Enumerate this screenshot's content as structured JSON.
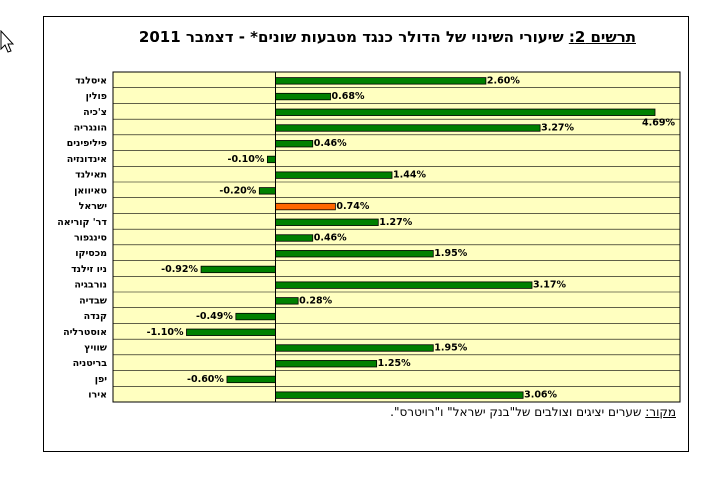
{
  "title": {
    "prefix": "תרשים 2:",
    "text": " שיעורי השינוי של הדולר כנגד מטבעות שונים* - דצמבר 2011"
  },
  "source": {
    "prefix": "מקור:",
    "text": " שערים יציגים וצולבים של\"בנק ישראל\" ו\"רויטרס\"."
  },
  "cursor_icon": "arrow-cursor-icon",
  "colors": {
    "plot_background": "#ffffc0",
    "bar": "#008000",
    "highlight_bar": "#ff6600",
    "bar_edge": "#000000"
  },
  "chart_data": {
    "type": "bar",
    "orientation": "horizontal",
    "categories": [
      "איסלנד",
      "פולין",
      "צ'כיה",
      "הונגריה",
      "פיליפינים",
      "אינדונזיה",
      "תאילנד",
      "טאיוואן",
      "ישראל",
      "דר' קוריאה",
      "סינגפור",
      "מכסיקו",
      "ניו זילנד",
      "נורבגיה",
      "שבדיה",
      "קנדה",
      "אוסטרליה",
      "שוויץ",
      "בריטניה",
      "יפן",
      "אירו"
    ],
    "values": [
      2.6,
      0.68,
      4.69,
      3.27,
      0.46,
      -0.1,
      1.44,
      -0.2,
      0.74,
      1.27,
      0.46,
      1.95,
      -0.92,
      3.17,
      0.28,
      -0.49,
      -1.1,
      1.95,
      1.25,
      -0.6,
      3.06
    ],
    "value_labels": [
      "2.60%",
      "0.68%",
      "4.69%",
      "3.27%",
      "0.46%",
      "-0.10%",
      "1.44%",
      "-0.20%",
      "0.74%",
      "1.27%",
      "0.46%",
      "1.95%",
      "-0.92%",
      "3.17%",
      "0.28%",
      "-0.49%",
      "-1.10%",
      "1.95%",
      "1.25%",
      "-0.60%",
      "3.06%"
    ],
    "highlight_category": "ישראל",
    "xlim": [
      -1.2,
      4.9
    ],
    "grid": true,
    "legend": "none"
  }
}
